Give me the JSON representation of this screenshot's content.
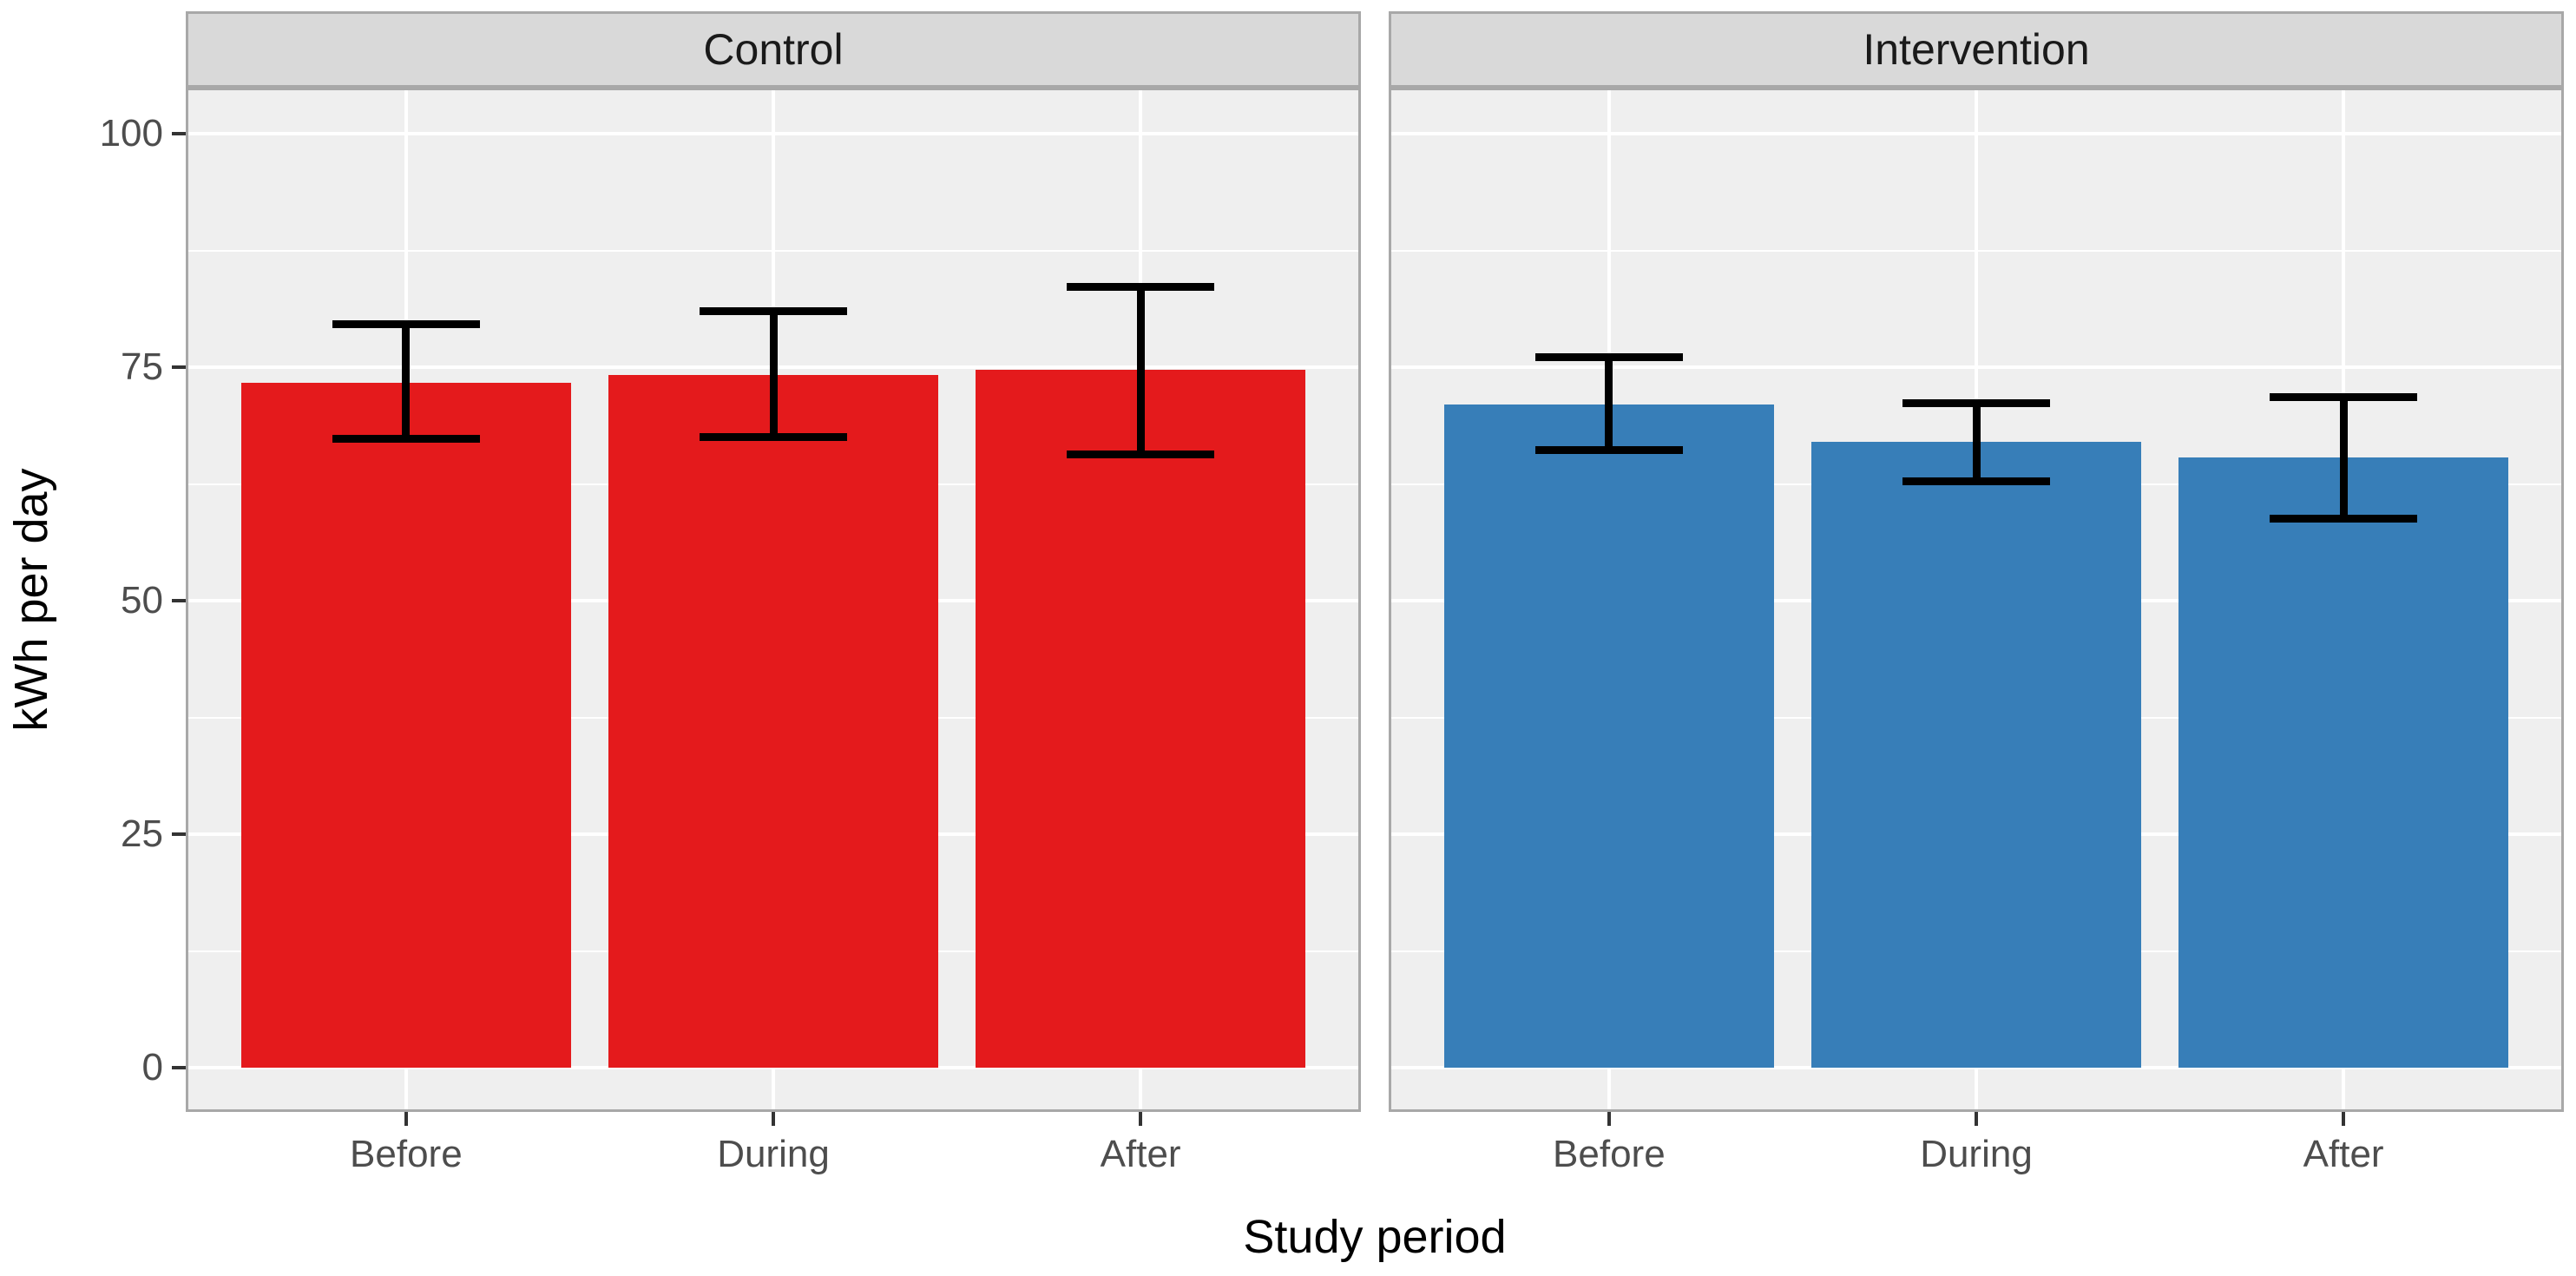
{
  "chart_data": {
    "type": "bar",
    "title": "",
    "xlabel": "Study period",
    "ylabel": "kWh per day",
    "categories": [
      "Before",
      "During",
      "After"
    ],
    "y_ticks": [
      0,
      25,
      50,
      75,
      100
    ],
    "y_minor_gridlines": [
      12.5,
      37.5,
      62.5,
      87.5
    ],
    "ylim": [
      -4.74,
      104.93
    ],
    "grid": true,
    "legend_position": "none",
    "error_bars": true,
    "facets": [
      {
        "label": "Control",
        "bar_color": "#E41A1C",
        "series": [
          {
            "category": "Before",
            "mean": 73.3,
            "error_low": 67.3,
            "error_high": 79.6
          },
          {
            "category": "During",
            "mean": 74.2,
            "error_low": 67.5,
            "error_high": 81.0
          },
          {
            "category": "After",
            "mean": 74.7,
            "error_low": 65.7,
            "error_high": 83.6
          }
        ]
      },
      {
        "label": "Intervention",
        "bar_color": "#377EB8",
        "series": [
          {
            "category": "Before",
            "mean": 71.0,
            "error_low": 66.1,
            "error_high": 76.1
          },
          {
            "category": "During",
            "mean": 67.0,
            "error_low": 62.8,
            "error_high": 71.1
          },
          {
            "category": "After",
            "mean": 65.3,
            "error_low": 58.8,
            "error_high": 71.8
          }
        ]
      }
    ]
  },
  "colors": {
    "page_background": "#FFFFFF",
    "panel_background": "#EFEFEF",
    "strip_background": "#D9D9D9",
    "panel_border": "#A8A8A8",
    "gridline": "#FFFFFF",
    "error_bar": "#000000",
    "tick_mark": "#333333",
    "tick_label": "#4D4D4D",
    "axis_title": "#000000",
    "strip_text": "#1A1A1A"
  }
}
